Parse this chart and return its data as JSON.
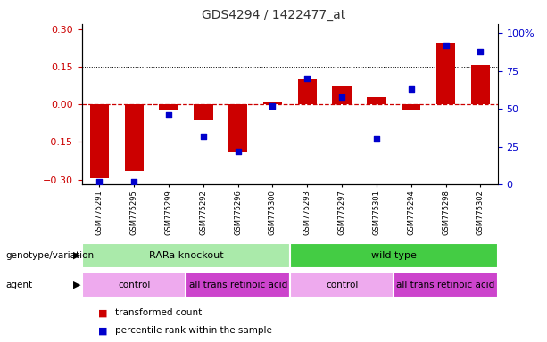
{
  "title": "GDS4294 / 1422477_at",
  "samples": [
    "GSM775291",
    "GSM775295",
    "GSM775299",
    "GSM775292",
    "GSM775296",
    "GSM775300",
    "GSM775293",
    "GSM775297",
    "GSM775301",
    "GSM775294",
    "GSM775298",
    "GSM775302"
  ],
  "bar_values": [
    -0.295,
    -0.265,
    -0.02,
    -0.065,
    -0.19,
    0.01,
    0.1,
    0.07,
    0.03,
    -0.02,
    0.245,
    0.155
  ],
  "scatter_values": [
    2,
    2,
    46,
    32,
    22,
    52,
    70,
    58,
    30,
    63,
    92,
    88
  ],
  "ylim_left": [
    -0.32,
    0.32
  ],
  "ylim_right": [
    0,
    106
  ],
  "yticks_left": [
    -0.3,
    -0.15,
    0,
    0.15,
    0.3
  ],
  "yticks_right": [
    0,
    25,
    50,
    75,
    100
  ],
  "ytick_labels_right": [
    "0",
    "25",
    "50",
    "75",
    "100%"
  ],
  "bar_color": "#cc0000",
  "scatter_color": "#0000cc",
  "zero_line_color": "#cc0000",
  "dotted_line_color": "#000000",
  "genotype_groups": [
    {
      "label": "RARa knockout",
      "start": 0,
      "end": 6,
      "color": "#aaeaaa"
    },
    {
      "label": "wild type",
      "start": 6,
      "end": 12,
      "color": "#44cc44"
    }
  ],
  "agent_groups": [
    {
      "label": "control",
      "start": 0,
      "end": 3,
      "color": "#eeaaee"
    },
    {
      "label": "all trans retinoic acid",
      "start": 3,
      "end": 6,
      "color": "#cc44cc"
    },
    {
      "label": "control",
      "start": 6,
      "end": 9,
      "color": "#eeaaee"
    },
    {
      "label": "all trans retinoic acid",
      "start": 9,
      "end": 12,
      "color": "#cc44cc"
    }
  ],
  "legend_items": [
    {
      "label": "transformed count",
      "color": "#cc0000"
    },
    {
      "label": "percentile rank within the sample",
      "color": "#0000cc"
    }
  ],
  "xlabel_geno": "genotype/variation",
  "xlabel_agent": "agent"
}
